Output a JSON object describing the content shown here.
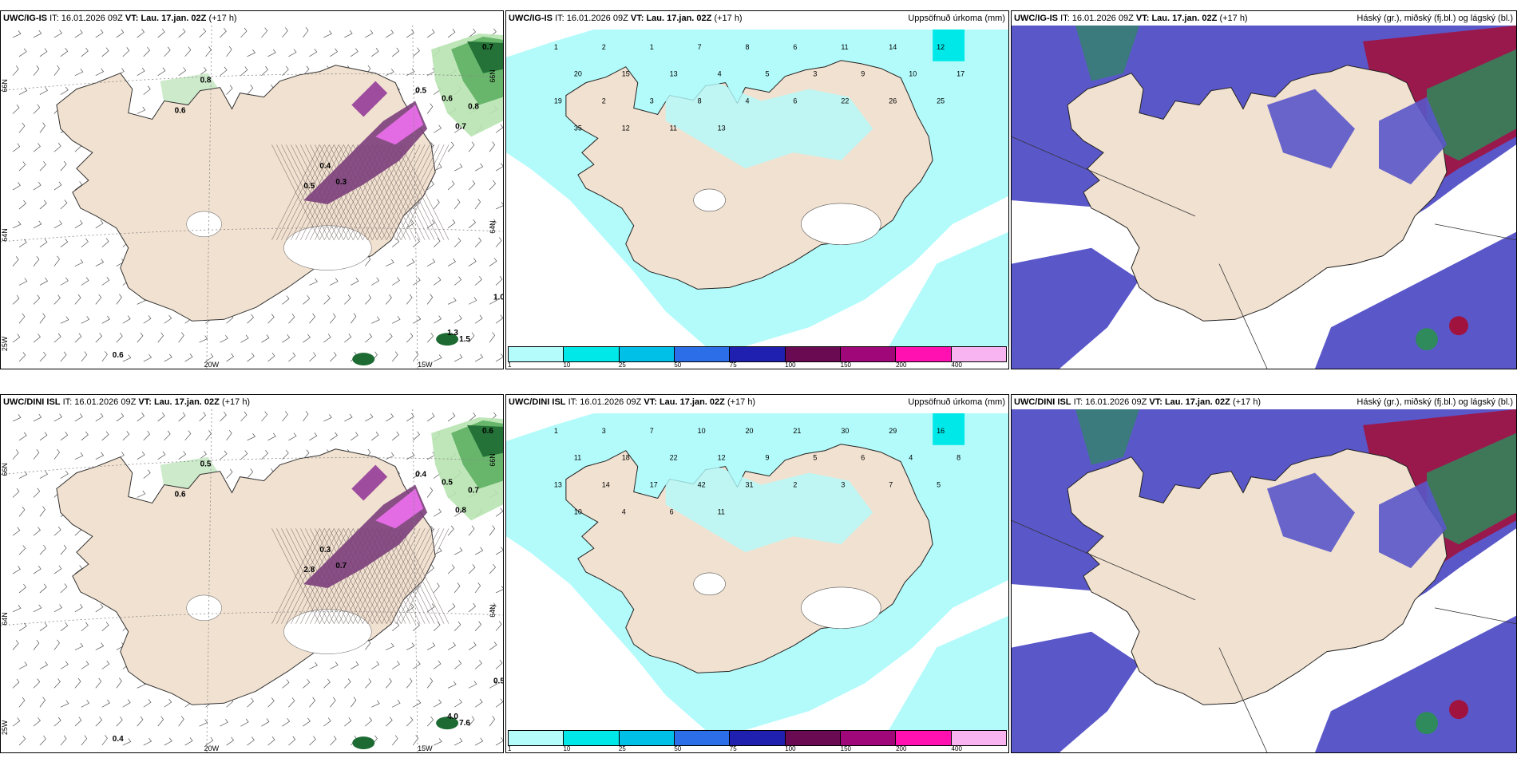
{
  "rows": [
    {
      "model": "UWC/IG-IS",
      "it_label": "IT:",
      "it_value": "16.01.2026 09Z",
      "vt_label": "VT:",
      "vt_value": "Lau. 17.jan. 02Z",
      "lead": "(+17 h)",
      "panel2_title": "Uppsöfnuð úrkoma (mm)",
      "panel3_title": "Háský (gr.), miðský (fj.bl.) og lágský (bl.)",
      "panel1_labels": [
        "0.8",
        "0.6",
        "0.7",
        "0.5",
        "0.6",
        "0.8",
        "0.7",
        "1.0",
        "0.6",
        "0.4",
        "0.3",
        "0.5",
        "1.3",
        "1.5"
      ],
      "panel2_labels": [
        "1",
        "2",
        "1",
        "7",
        "8",
        "6",
        "11",
        "14",
        "12",
        "20",
        "15",
        "13",
        "4",
        "5",
        "3",
        "9",
        "10",
        "17",
        "19",
        "2",
        "3",
        "8",
        "4",
        "6",
        "22",
        "26",
        "25",
        "35",
        "12",
        "11",
        "13"
      ]
    },
    {
      "model": "UWC/DINI ISL",
      "it_label": "IT:",
      "it_value": "16.01.2026 09Z",
      "vt_label": "VT:",
      "vt_value": "Lau. 17.jan. 02Z",
      "lead": "(+17 h)",
      "panel2_title": "Uppsöfnuð úrkoma (mm)",
      "panel3_title": "Háský (gr.), miðský (fj.bl.) og lágský (bl.)",
      "panel1_labels": [
        "0.5",
        "0.6",
        "0.6",
        "0.4",
        "0.5",
        "0.7",
        "0.8",
        "0.5",
        "0.4",
        "0.3",
        "0.7",
        "2.8",
        "4.0",
        "7.6"
      ],
      "panel2_labels": [
        "1",
        "3",
        "7",
        "10",
        "20",
        "21",
        "30",
        "29",
        "16",
        "11",
        "18",
        "22",
        "12",
        "9",
        "5",
        "6",
        "4",
        "8",
        "13",
        "14",
        "17",
        "42",
        "31",
        "2",
        "3",
        "7",
        "5",
        "10",
        "4",
        "6",
        "11"
      ]
    }
  ],
  "axis_labels": {
    "lat66": "66N",
    "lat64": "64N",
    "lon25": "25W",
    "lon20": "20W",
    "lon15": "15W",
    "lat66e": "66N",
    "lat64e": "64N"
  },
  "colorbar": {
    "ticks": [
      "1",
      "10",
      "25",
      "50",
      "75",
      "100",
      "150",
      "200",
      "400"
    ],
    "colors": [
      "#b4fbfb",
      "#00e8e8",
      "#00c0e8",
      "#2c6ee8",
      "#2020b0",
      "#6a0a52",
      "#a0087a",
      "#ff10b0",
      "#f7b4f0"
    ]
  },
  "colors": {
    "land": "#f1e1d0",
    "sea_precip": "#b3fbfb",
    "cloud_low": "#5a57c9",
    "cloud_mid": "#a0133f",
    "cloud_high": "#2f8a5c",
    "snow": "#bf4fbf"
  }
}
